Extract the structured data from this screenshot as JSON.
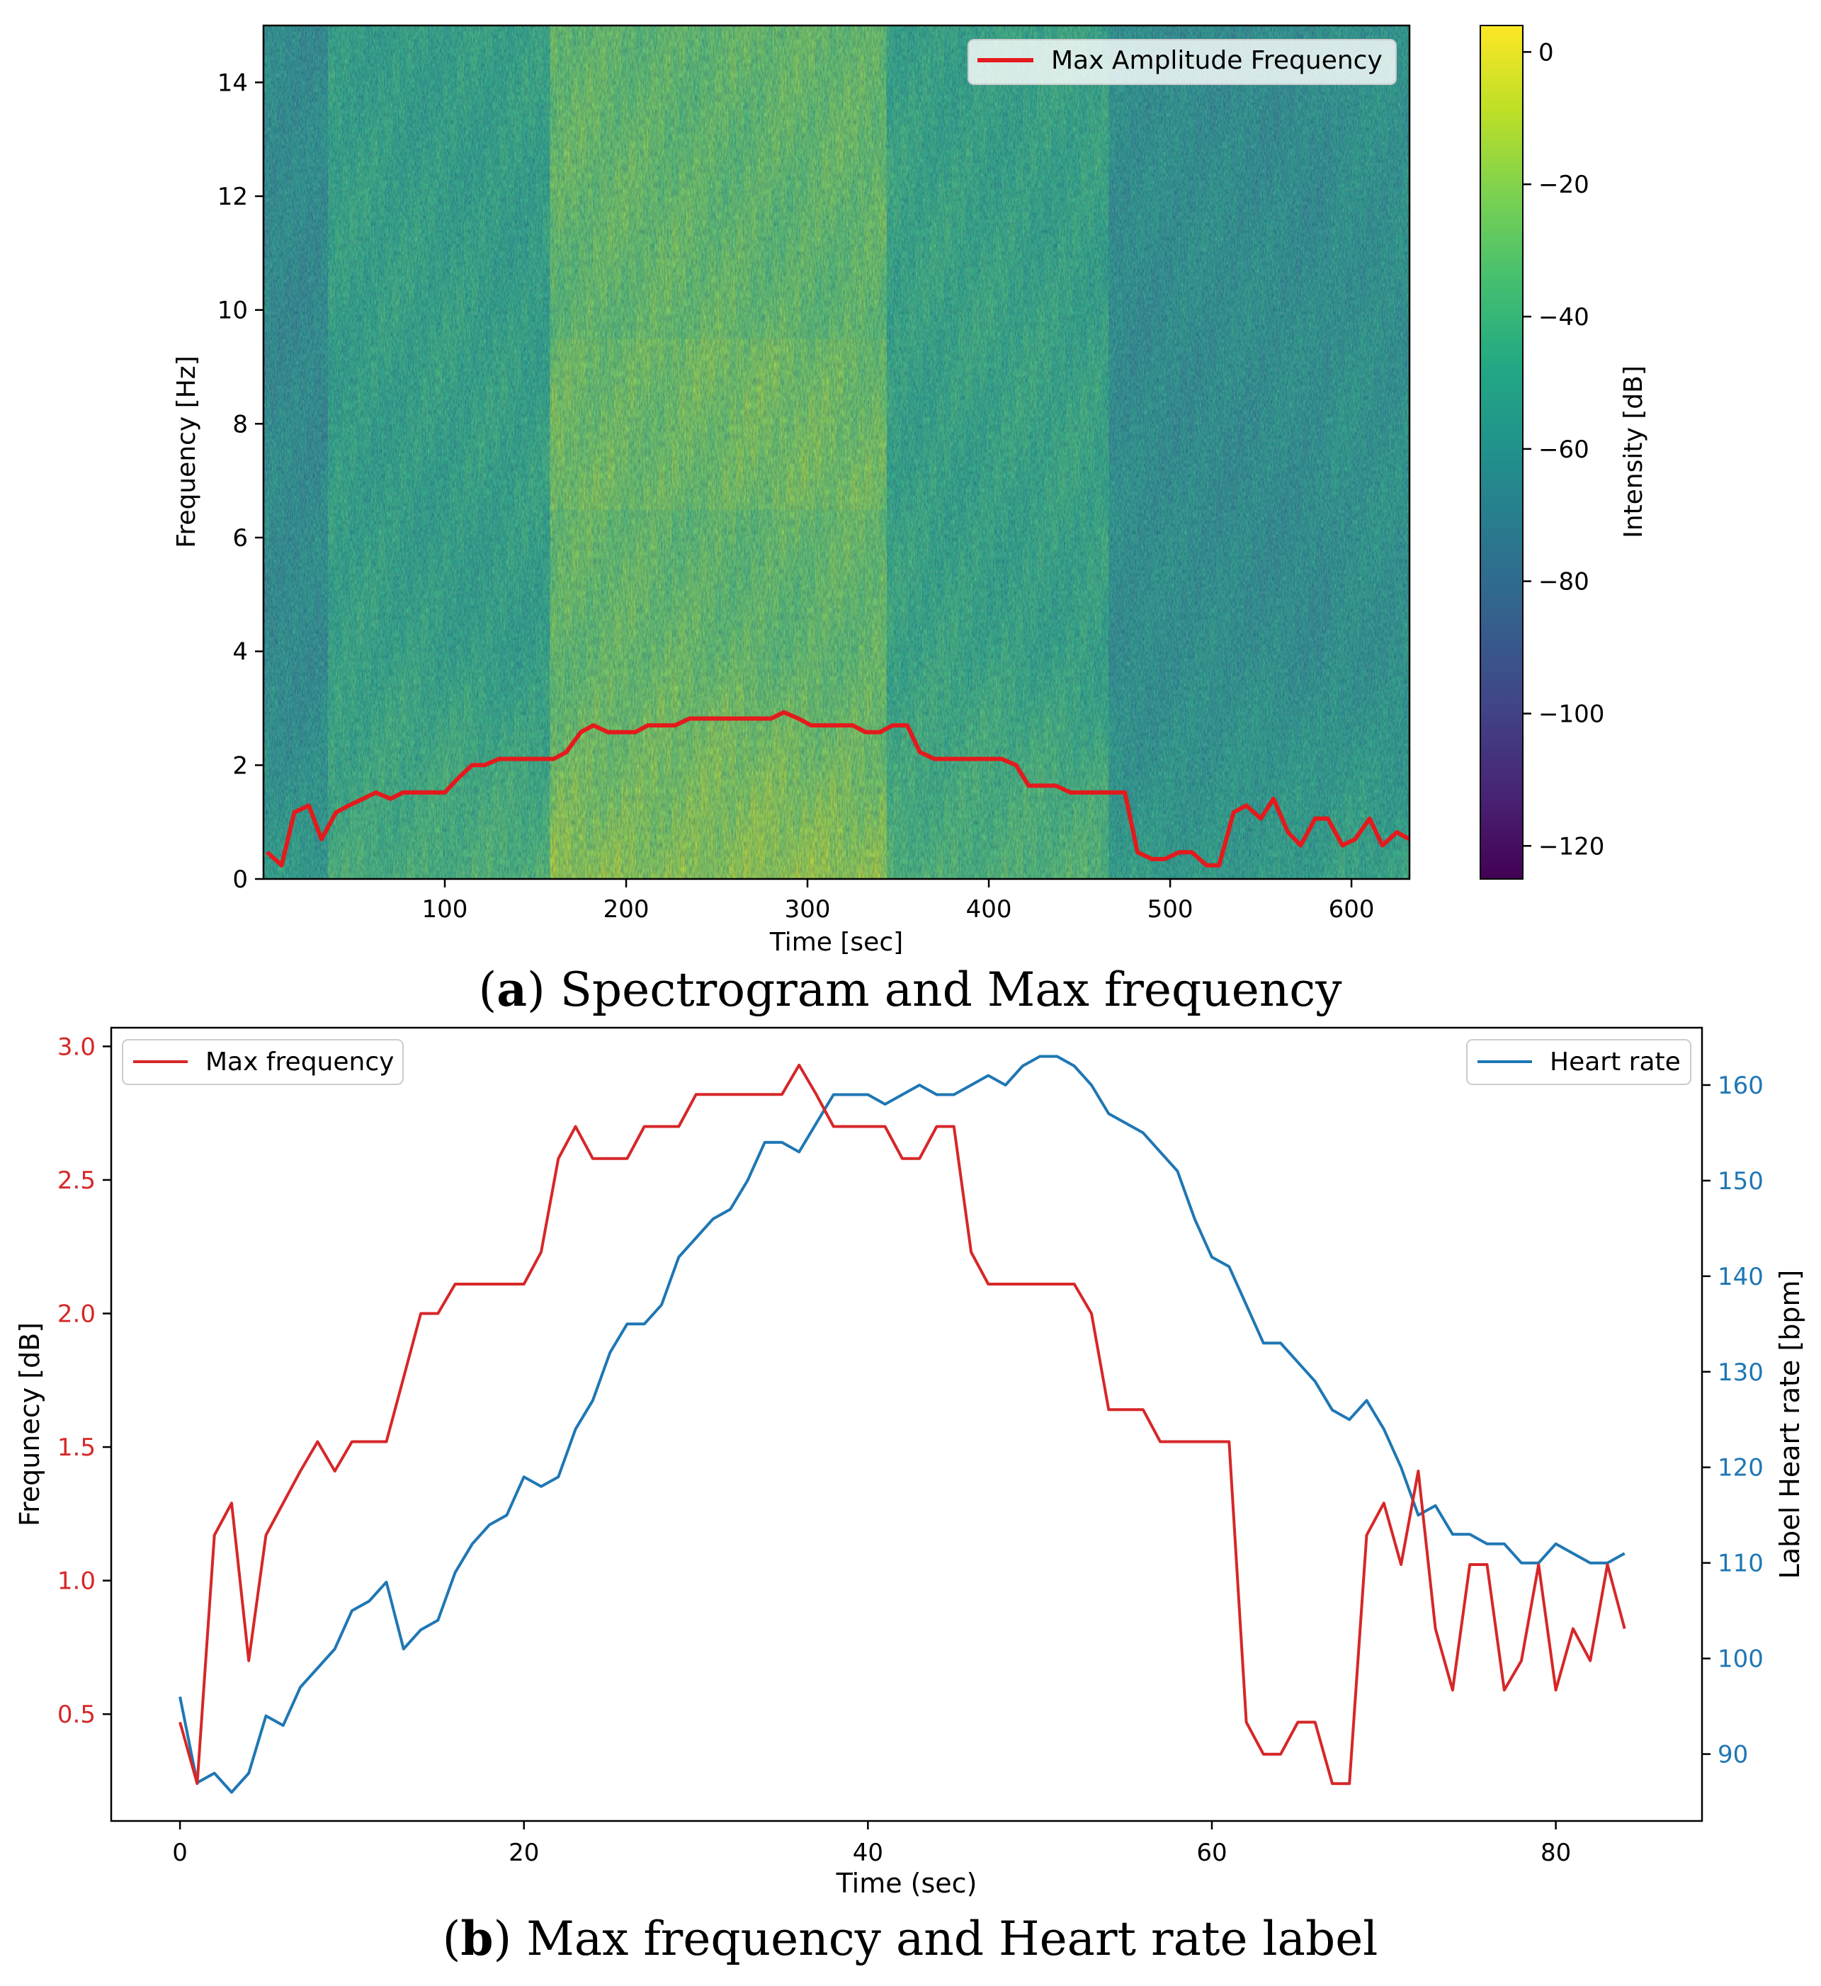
{
  "chart_data": [
    {
      "type": "heatmap",
      "panel": "a",
      "caption_letter": "a",
      "caption_text": "Spectrogram and Max frequency",
      "xlabel": "Time [sec]",
      "ylabel": "Frequency [Hz]",
      "colorbar_label": "Intensity [dB]",
      "xlim": [
        0,
        632
      ],
      "ylim": [
        0,
        15
      ],
      "xticks": [
        100,
        200,
        300,
        400,
        500,
        600
      ],
      "yticks": [
        0,
        2,
        4,
        6,
        8,
        10,
        12,
        14
      ],
      "colorbar_range": [
        -125,
        4
      ],
      "colorbar_ticks": [
        0,
        -20,
        -40,
        -60,
        -80,
        -100,
        -120
      ],
      "colorbar_tick_labels": [
        "0",
        "−20",
        "−40",
        "−60",
        "−80",
        "−100",
        "−120"
      ],
      "colormap": "viridis",
      "legend_position": "top-right",
      "legend": [
        "Max Amplitude Frequency"
      ],
      "line_color": "#e41a1c",
      "line_t": [
        2,
        10,
        17,
        25,
        32,
        40,
        47,
        55,
        62,
        70,
        77,
        85,
        92,
        100,
        107,
        115,
        122,
        130,
        137,
        145,
        152,
        160,
        167,
        175,
        182,
        190,
        197,
        205,
        212,
        220,
        227,
        235,
        242,
        250,
        257,
        265,
        272,
        280,
        287,
        295,
        302,
        310,
        317,
        325,
        332,
        340,
        347,
        355,
        362,
        370,
        377,
        385,
        392,
        400,
        407,
        415,
        422,
        430,
        437,
        445,
        452,
        460,
        467,
        475,
        482,
        490,
        497,
        505,
        512,
        520,
        527,
        535,
        542,
        550,
        557,
        565,
        572,
        580,
        587,
        595,
        602,
        610,
        617,
        625,
        632
      ],
      "line_freq": [
        0.47,
        0.24,
        1.17,
        1.29,
        0.7,
        1.17,
        1.29,
        1.41,
        1.52,
        1.41,
        1.52,
        1.52,
        1.52,
        1.52,
        1.76,
        2.0,
        2.0,
        2.11,
        2.11,
        2.11,
        2.11,
        2.11,
        2.23,
        2.58,
        2.7,
        2.58,
        2.58,
        2.58,
        2.7,
        2.7,
        2.7,
        2.82,
        2.82,
        2.82,
        2.82,
        2.82,
        2.82,
        2.82,
        2.93,
        2.82,
        2.7,
        2.7,
        2.7,
        2.7,
        2.58,
        2.58,
        2.7,
        2.7,
        2.23,
        2.11,
        2.11,
        2.11,
        2.11,
        2.11,
        2.11,
        2.0,
        1.64,
        1.64,
        1.64,
        1.52,
        1.52,
        1.52,
        1.52,
        1.52,
        0.47,
        0.35,
        0.35,
        0.47,
        0.47,
        0.24,
        0.24,
        1.17,
        1.29,
        1.06,
        1.41,
        0.82,
        0.59,
        1.06,
        1.06,
        0.59,
        0.7,
        1.06,
        0.59,
        0.82,
        0.7
      ]
    },
    {
      "type": "line",
      "panel": "b",
      "caption_letter": "b",
      "caption_text": "Max frequency and Heart rate label",
      "xlabel": "Time (sec)",
      "ylabel_left": "Frequnecy [dB]",
      "ylabel_right": "Label Heart rate [bpm]",
      "xlim": [
        -4,
        88.5
      ],
      "ylim_left": [
        0.1,
        3.07
      ],
      "ylim_right": [
        83,
        166
      ],
      "xticks": [
        0,
        20,
        40,
        60,
        80
      ],
      "yticks_left": [
        0.5,
        1.0,
        1.5,
        2.0,
        2.5,
        3.0
      ],
      "ytick_labels_left": [
        "0.5",
        "1.0",
        "1.5",
        "2.0",
        "2.5",
        "3.0"
      ],
      "yticks_right": [
        90,
        100,
        110,
        120,
        130,
        140,
        150,
        160
      ],
      "left_color": "#d62728",
      "right_color": "#1f77b4",
      "x": [
        0,
        1,
        2,
        3,
        4,
        5,
        6,
        7,
        8,
        9,
        10,
        11,
        12,
        13,
        14,
        15,
        16,
        17,
        18,
        19,
        20,
        21,
        22,
        23,
        24,
        25,
        26,
        27,
        28,
        29,
        30,
        31,
        32,
        33,
        34,
        35,
        36,
        37,
        38,
        39,
        40,
        41,
        42,
        43,
        44,
        45,
        46,
        47,
        48,
        49,
        50,
        51,
        52,
        53,
        54,
        55,
        56,
        57,
        58,
        59,
        60,
        61,
        62,
        63,
        64,
        65,
        66,
        67,
        68,
        69,
        70,
        71,
        72,
        73,
        74,
        75,
        76,
        77,
        78,
        79,
        80,
        81,
        82,
        83,
        84
      ],
      "series": [
        {
          "name": "Max frequency",
          "axis": "left",
          "legend_position": "top-left",
          "values": [
            0.47,
            0.24,
            1.17,
            1.29,
            0.7,
            1.17,
            1.29,
            1.41,
            1.52,
            1.41,
            1.52,
            1.52,
            1.52,
            1.76,
            2.0,
            2.0,
            2.11,
            2.11,
            2.11,
            2.11,
            2.11,
            2.23,
            2.58,
            2.7,
            2.58,
            2.58,
            2.58,
            2.7,
            2.7,
            2.7,
            2.82,
            2.82,
            2.82,
            2.82,
            2.82,
            2.82,
            2.93,
            2.82,
            2.7,
            2.7,
            2.7,
            2.7,
            2.58,
            2.58,
            2.7,
            2.7,
            2.23,
            2.11,
            2.11,
            2.11,
            2.11,
            2.11,
            2.11,
            2.0,
            1.64,
            1.64,
            1.64,
            1.52,
            1.52,
            1.52,
            1.52,
            1.52,
            0.47,
            0.35,
            0.35,
            0.47,
            0.47,
            0.24,
            0.24,
            1.17,
            1.29,
            1.06,
            1.41,
            0.82,
            0.59,
            1.06,
            1.06,
            0.59,
            0.7,
            1.06,
            0.59,
            0.82,
            0.7,
            1.06,
            0.82
          ]
        },
        {
          "name": "Heart rate",
          "axis": "right",
          "legend_position": "top-right",
          "values": [
            96,
            87,
            88,
            86,
            88,
            94,
            93,
            97,
            99,
            101,
            105,
            106,
            108,
            101,
            103,
            104,
            109,
            112,
            114,
            115,
            119,
            118,
            119,
            124,
            127,
            132,
            135,
            135,
            137,
            142,
            144,
            146,
            147,
            150,
            154,
            154,
            153,
            156,
            159,
            159,
            159,
            158,
            159,
            160,
            159,
            159,
            160,
            161,
            160,
            162,
            163,
            163,
            162,
            160,
            157,
            156,
            155,
            153,
            151,
            146,
            142,
            141,
            137,
            133,
            133,
            131,
            129,
            126,
            125,
            127,
            124,
            120,
            115,
            116,
            113,
            113,
            112,
            112,
            110,
            110,
            112,
            111,
            110,
            110,
            111
          ]
        }
      ]
    }
  ]
}
